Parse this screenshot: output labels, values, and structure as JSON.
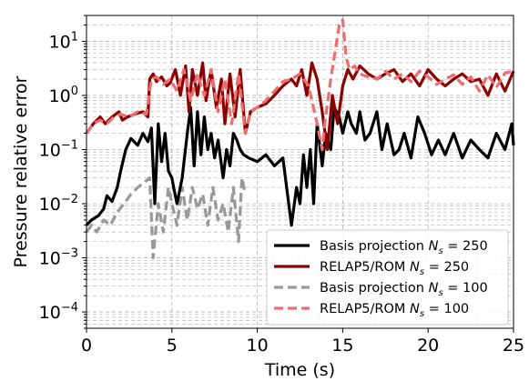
{
  "chart_data": {
    "type": "line",
    "title": "",
    "xlabel": "Time (s)",
    "ylabel": "Pressure relative error",
    "xlim": [
      0,
      25
    ],
    "ylim": [
      5e-05,
      30
    ],
    "yscale": "log",
    "grid": true,
    "grid_style": "dashed, major and minor",
    "legend_placement": "lower-right",
    "x_ticks": [
      0,
      5,
      10,
      15,
      20,
      25
    ],
    "x_tick_labels": [
      "0",
      "5",
      "10",
      "15",
      "20",
      "25"
    ],
    "y_ticks": [
      0.0001,
      0.001,
      0.01,
      0.1,
      1,
      10
    ],
    "y_tick_labels": [
      {
        "base": "10",
        "exp": "−4"
      },
      {
        "base": "10",
        "exp": "−3"
      },
      {
        "base": "10",
        "exp": "−2"
      },
      {
        "base": "10",
        "exp": "−1"
      },
      {
        "base": "10",
        "exp": "0"
      },
      {
        "base": "10",
        "exp": "1"
      }
    ],
    "series": [
      {
        "name": "Basis projection",
        "ns_label": "N",
        "ns_sub": "s",
        "ns_value": " = 250",
        "color": "#000000",
        "dash": "solid",
        "x": [
          0,
          0.3,
          0.7,
          1.0,
          1.2,
          1.5,
          1.8,
          2.0,
          2.3,
          2.6,
          3.0,
          3.3,
          3.6,
          3.8,
          4.0,
          4.2,
          4.4,
          4.6,
          4.8,
          5.0,
          5.1,
          5.3,
          5.6,
          5.9,
          6.1,
          6.3,
          6.5,
          6.7,
          6.9,
          7.1,
          7.3,
          7.5,
          7.7,
          8.0,
          8.2,
          8.4,
          8.6,
          8.8,
          9.0,
          9.2,
          9.5,
          10.0,
          10.5,
          11.0,
          11.5,
          12.0,
          12.3,
          12.5,
          12.7,
          12.9,
          13.1,
          13.3,
          13.5,
          13.8,
          14.0,
          14.3,
          14.5,
          14.8,
          15.0,
          15.3,
          15.5,
          15.8,
          16.0,
          16.3,
          16.6,
          17.0,
          17.3,
          17.6,
          18.0,
          18.3,
          18.6,
          19.0,
          19.4,
          19.8,
          20.2,
          20.6,
          21.0,
          21.5,
          22.0,
          22.5,
          23.0,
          23.5,
          24.0,
          24.5,
          24.9,
          25.0
        ],
        "values": [
          0.004,
          0.005,
          0.006,
          0.008,
          0.014,
          0.011,
          0.02,
          0.04,
          0.1,
          0.16,
          0.12,
          0.2,
          0.14,
          0.25,
          0.01,
          0.3,
          0.06,
          0.2,
          0.04,
          0.03,
          0.02,
          0.01,
          0.03,
          0.2,
          0.6,
          0.05,
          0.5,
          0.08,
          0.4,
          0.1,
          0.2,
          0.07,
          0.15,
          0.03,
          0.1,
          0.05,
          0.2,
          0.15,
          0.1,
          0.08,
          0.07,
          0.06,
          0.08,
          0.05,
          0.07,
          0.004,
          0.02,
          0.01,
          0.08,
          0.02,
          0.1,
          0.01,
          0.3,
          0.05,
          0.2,
          0.1,
          0.6,
          0.4,
          0.2,
          0.5,
          0.3,
          0.2,
          0.5,
          0.15,
          0.2,
          0.5,
          0.1,
          0.3,
          0.08,
          0.1,
          0.2,
          0.07,
          0.4,
          0.2,
          0.08,
          0.15,
          0.08,
          0.2,
          0.07,
          0.15,
          0.1,
          0.07,
          0.2,
          0.1,
          0.3,
          0.12
        ]
      },
      {
        "name": "RELAP5/ROM",
        "ns_label": "N",
        "ns_sub": "s",
        "ns_value": " = 250",
        "color": "#8b0000",
        "dash": "solid",
        "x": [
          0,
          0.4,
          0.8,
          1.1,
          1.5,
          1.9,
          2.1,
          2.4,
          2.8,
          3.3,
          3.6,
          3.7,
          3.9,
          4.1,
          4.4,
          4.7,
          4.9,
          5.2,
          5.5,
          5.8,
          6.0,
          6.2,
          6.5,
          6.8,
          7.0,
          7.3,
          7.6,
          7.9,
          8.1,
          8.4,
          8.7,
          9.0,
          9.3,
          9.6,
          10.0,
          10.5,
          11.0,
          11.5,
          12.0,
          12.3,
          12.6,
          12.9,
          13.2,
          13.5,
          13.8,
          14.1,
          14.4,
          14.7,
          15.0,
          15.3,
          15.6,
          16.0,
          16.5,
          17.0,
          17.5,
          18.0,
          18.5,
          19.0,
          19.5,
          20.0,
          20.5,
          21.0,
          21.5,
          22.0,
          22.5,
          23.0,
          23.5,
          24.0,
          24.5,
          25.0
        ],
        "values": [
          0.2,
          0.3,
          0.4,
          0.3,
          0.4,
          0.5,
          0.35,
          0.4,
          0.45,
          0.5,
          0.4,
          2.0,
          2.5,
          1.8,
          2.2,
          1.5,
          1.7,
          3.0,
          1.0,
          3.5,
          0.5,
          3.0,
          1.0,
          4.0,
          0.8,
          3.0,
          0.6,
          2.0,
          0.3,
          2.5,
          0.4,
          3.0,
          0.2,
          0.5,
          0.6,
          0.7,
          1.0,
          1.5,
          2.0,
          1.5,
          3.0,
          1.0,
          4.0,
          2.0,
          0.5,
          0.1,
          1.0,
          0.3,
          1.5,
          3.0,
          2.0,
          3.5,
          2.5,
          2.0,
          2.5,
          3.0,
          1.8,
          2.5,
          1.5,
          3.0,
          2.0,
          1.5,
          2.0,
          2.5,
          1.8,
          2.0,
          1.0,
          2.5,
          1.2,
          2.8
        ]
      },
      {
        "name": "Basis projection",
        "ns_label": "N",
        "ns_sub": "s",
        "ns_value": " = 100",
        "color": "#999999",
        "dash": "dashed",
        "x": [
          0,
          0.3,
          0.6,
          1.0,
          1.4,
          1.8,
          2.2,
          2.6,
          3.0,
          3.4,
          3.7,
          3.9,
          4.2,
          4.5,
          4.8,
          5.0,
          5.3,
          5.6,
          5.9,
          6.2,
          6.5,
          6.8,
          7.1,
          7.4,
          7.7,
          8.0,
          8.3,
          8.6,
          8.9,
          9.1,
          9.3
        ],
        "values": [
          0.003,
          0.004,
          0.003,
          0.005,
          0.004,
          0.007,
          0.01,
          0.015,
          0.02,
          0.025,
          0.03,
          0.001,
          0.01,
          0.003,
          0.02,
          0.01,
          0.004,
          0.02,
          0.005,
          0.02,
          0.008,
          0.015,
          0.004,
          0.02,
          0.005,
          0.01,
          0.003,
          0.02,
          0.002,
          0.03,
          0.015
        ]
      },
      {
        "name": "RELAP5/ROM",
        "ns_label": "N",
        "ns_sub": "s",
        "ns_value": " = 100",
        "color": "#ee6e6e",
        "dash": "dashed",
        "x": [
          0,
          0.4,
          0.8,
          1.2,
          1.6,
          2.0,
          2.5,
          3.0,
          3.5,
          3.8,
          4.1,
          4.5,
          4.9,
          5.3,
          5.7,
          6.1,
          6.5,
          6.9,
          7.3,
          7.7,
          8.1,
          8.5,
          8.9,
          9.3,
          9.6,
          10.0,
          10.5,
          11.0,
          11.5,
          12.0,
          12.5,
          13.0,
          13.5,
          13.8,
          14.0,
          14.3,
          14.6,
          14.8,
          15.0,
          15.2,
          15.4,
          15.7,
          16.0,
          16.5,
          17.0,
          17.5,
          18.0,
          18.5,
          19.0,
          19.5,
          20.0,
          20.5,
          21.0,
          21.5,
          22.0,
          22.5,
          23.0,
          23.5,
          24.0,
          24.5,
          25.0
        ],
        "values": [
          0.2,
          0.3,
          0.35,
          0.3,
          0.4,
          0.45,
          0.4,
          0.5,
          0.45,
          2.0,
          2.2,
          1.6,
          2.0,
          1.2,
          3.0,
          0.8,
          2.5,
          1.0,
          3.0,
          0.5,
          2.0,
          0.3,
          2.5,
          0.2,
          0.5,
          0.6,
          0.8,
          1.2,
          1.8,
          2.0,
          2.5,
          1.5,
          0.3,
          0.1,
          0.4,
          2.0,
          8.0,
          20.0,
          25.0,
          5.0,
          3.0,
          3.5,
          2.5,
          2.2,
          2.0,
          2.8,
          2.0,
          2.5,
          1.8,
          2.8,
          2.2,
          1.6,
          2.0,
          2.4,
          1.6,
          2.2,
          1.2,
          2.4,
          1.4,
          2.6,
          2.8
        ]
      }
    ]
  }
}
